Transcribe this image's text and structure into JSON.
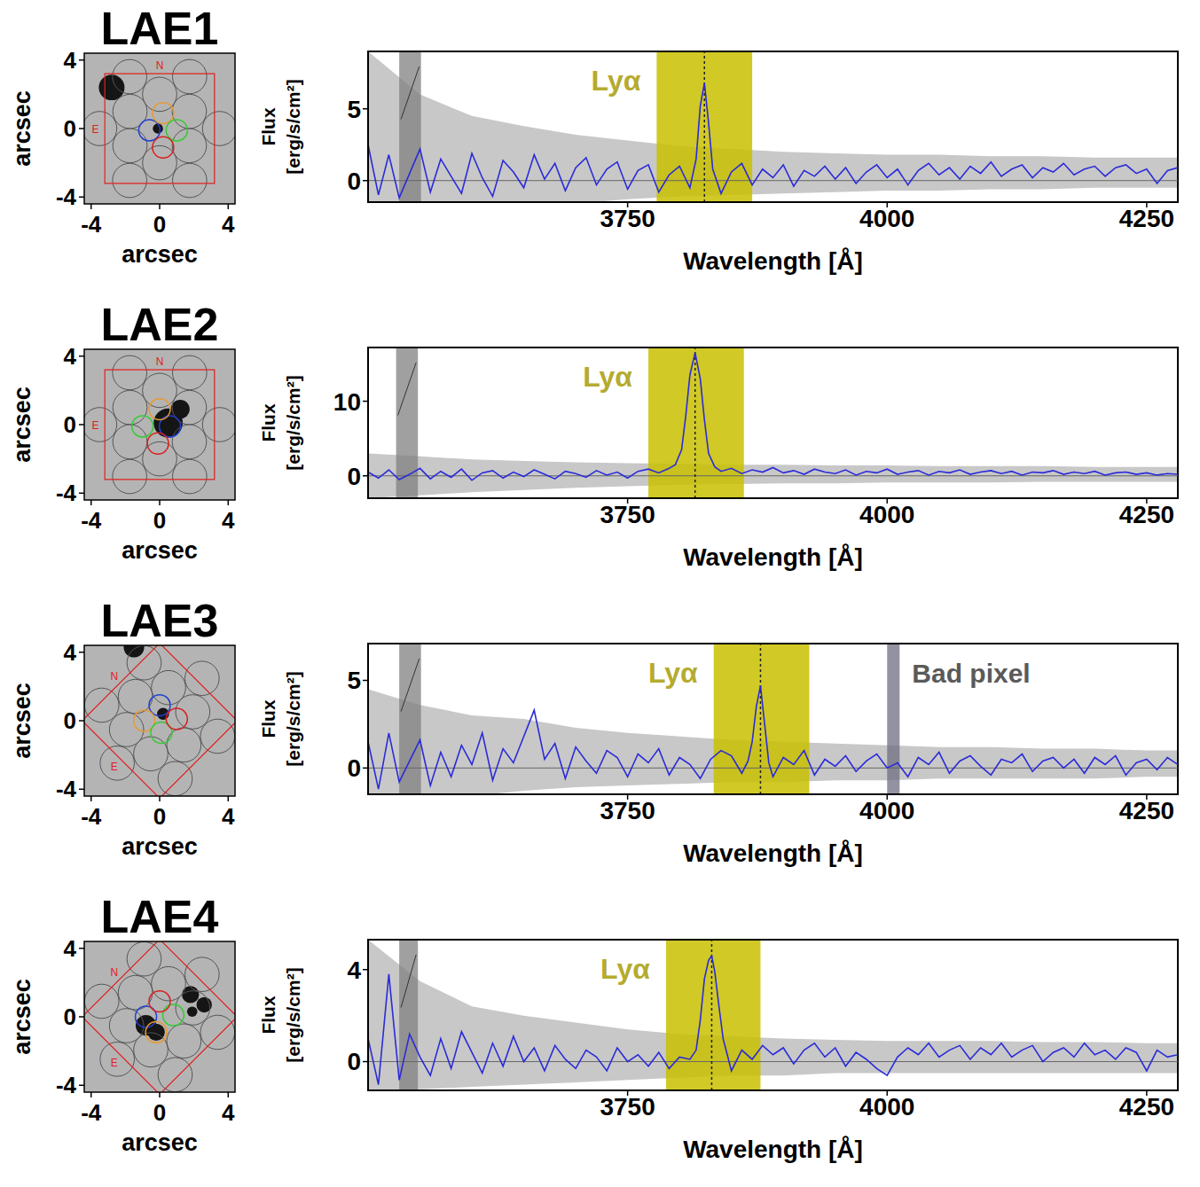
{
  "chart_data": [
    {
      "type": "line",
      "title": "LAE1",
      "x_label": "Wavelength [Å]",
      "y_label": "Flux [erg/s/cm²]",
      "xlim": [
        3500,
        4280
      ],
      "xticks": [
        3750,
        4000,
        4250
      ],
      "ylim": [
        -1.5,
        9
      ],
      "yticks": [
        0,
        5
      ],
      "color": "#2b2bd9",
      "reference_line": 0,
      "x": [
        3500,
        3510,
        3520,
        3530,
        3540,
        3550,
        3560,
        3570,
        3580,
        3590,
        3600,
        3610,
        3620,
        3630,
        3640,
        3650,
        3660,
        3670,
        3680,
        3690,
        3700,
        3710,
        3720,
        3730,
        3740,
        3750,
        3760,
        3770,
        3780,
        3790,
        3800,
        3810,
        3816,
        3820,
        3824,
        3828,
        3832,
        3840,
        3850,
        3860,
        3870,
        3880,
        3890,
        3900,
        3910,
        3920,
        3930,
        3940,
        3950,
        3960,
        3970,
        3980,
        3990,
        4000,
        4010,
        4020,
        4030,
        4040,
        4050,
        4060,
        4070,
        4080,
        4090,
        4100,
        4110,
        4120,
        4130,
        4140,
        4150,
        4160,
        4170,
        4180,
        4190,
        4200,
        4210,
        4220,
        4230,
        4240,
        4250,
        4260,
        4270,
        4280
      ],
      "values": [
        2.5,
        -1.0,
        1.8,
        -1.2,
        0.5,
        2.2,
        -0.8,
        1.5,
        0.3,
        -0.9,
        1.9,
        0.2,
        -1.1,
        1.4,
        0.6,
        -0.5,
        1.8,
        0.1,
        1.2,
        -0.7,
        0.9,
        1.6,
        -0.3,
        0.8,
        1.3,
        -0.6,
        0.7,
        1.1,
        -0.8,
        0.4,
        1.0,
        -0.5,
        1.5,
        5.2,
        6.8,
        4.0,
        0.8,
        -0.9,
        0.6,
        1.2,
        -0.3,
        0.8,
        0.2,
        1.1,
        -0.4,
        0.7,
        0.3,
        1.0,
        0.1,
        0.9,
        -0.2,
        0.6,
        1.1,
        0.2,
        0.8,
        -0.3,
        0.7,
        1.2,
        0.4,
        0.9,
        0.1,
        1.0,
        0.5,
        1.3,
        0.3,
        0.8,
        1.1,
        0.2,
        0.9,
        0.6,
        1.2,
        0.4,
        0.8,
        1.0,
        0.3,
        0.9,
        1.1,
        0.5,
        0.8,
        -0.2,
        0.7,
        0.9
      ],
      "error_band": {
        "color": "#c8c8c8",
        "x": [
          3500,
          3550,
          3600,
          3650,
          3700,
          3750,
          3800,
          3850,
          3900,
          3950,
          4000,
          4050,
          4100,
          4150,
          4200,
          4250,
          4280
        ],
        "lower": [
          -4,
          -3,
          -2.5,
          -2,
          -1.6,
          -1.3,
          -1.1,
          -1.0,
          -0.9,
          -0.8,
          -0.7,
          -0.7,
          -0.6,
          -0.6,
          -0.5,
          -0.5,
          -0.5
        ],
        "upper": [
          9,
          6.0,
          4.5,
          3.8,
          3.2,
          2.8,
          2.4,
          2.2,
          2.0,
          1.9,
          1.8,
          1.8,
          1.7,
          1.7,
          1.6,
          1.6,
          1.6
        ]
      },
      "highlight": {
        "text": "Lyα",
        "x_range": [
          3778,
          3870
        ],
        "line_x": 3824,
        "color": "#c8c000"
      },
      "masked": [
        {
          "x_range": [
            3530,
            3551
          ],
          "color": "#808080"
        }
      ],
      "image_panel": {
        "x_label": "arcsec",
        "y_label": "arcsec",
        "xlim": [
          -4.4,
          4.4
        ],
        "ylim": [
          -4.4,
          4.4
        ],
        "xticks": [
          -4,
          0,
          4
        ],
        "yticks": [
          -4,
          0,
          4
        ],
        "compass": [
          "N",
          "E"
        ]
      }
    },
    {
      "type": "line",
      "title": "LAE2",
      "x_label": "Wavelength [Å]",
      "y_label": "Flux [erg/s/cm²]",
      "xlim": [
        3500,
        4280
      ],
      "xticks": [
        3750,
        4000,
        4250
      ],
      "ylim": [
        -3,
        17.2
      ],
      "yticks": [
        0,
        10
      ],
      "color": "#2b2bd9",
      "reference_line": 0,
      "x": [
        3500,
        3510,
        3520,
        3530,
        3540,
        3550,
        3560,
        3570,
        3580,
        3590,
        3600,
        3610,
        3620,
        3630,
        3640,
        3650,
        3660,
        3670,
        3680,
        3690,
        3700,
        3710,
        3720,
        3730,
        3740,
        3750,
        3760,
        3770,
        3780,
        3790,
        3796,
        3802,
        3806,
        3810,
        3815,
        3820,
        3824,
        3828,
        3834,
        3840,
        3850,
        3860,
        3870,
        3880,
        3890,
        3900,
        3910,
        3920,
        3930,
        3940,
        3950,
        3960,
        3970,
        3980,
        3990,
        4000,
        4010,
        4020,
        4030,
        4040,
        4050,
        4060,
        4070,
        4080,
        4090,
        4100,
        4110,
        4120,
        4130,
        4140,
        4150,
        4160,
        4170,
        4180,
        4190,
        4200,
        4210,
        4220,
        4230,
        4240,
        4250,
        4260,
        4270,
        4280
      ],
      "values": [
        0.5,
        -0.3,
        0.8,
        -0.5,
        0.2,
        1.0,
        -0.4,
        0.6,
        -0.2,
        0.9,
        -0.6,
        0.4,
        0.7,
        -0.3,
        0.5,
        -0.1,
        0.8,
        0.2,
        -0.4,
        0.6,
        0.3,
        -0.2,
        0.7,
        0.1,
        0.5,
        -0.3,
        0.6,
        0.9,
        0.4,
        1.0,
        1.5,
        3.5,
        8.0,
        13.5,
        16.5,
        13.0,
        7.5,
        3.0,
        1.2,
        0.6,
        1.0,
        0.3,
        0.8,
        0.5,
        1.1,
        0.4,
        0.7,
        0.2,
        0.9,
        0.5,
        0.3,
        0.8,
        0.1,
        0.6,
        0.4,
        0.9,
        0.2,
        0.5,
        0.7,
        0.1,
        0.6,
        0.4,
        0.8,
        0.2,
        0.5,
        0.7,
        0.3,
        0.6,
        0.1,
        0.5,
        0.4,
        0.7,
        0.2,
        0.5,
        0.3,
        0.6,
        0.1,
        0.4,
        0.5,
        0.2,
        0.4,
        0.1,
        0.3,
        0.2
      ],
      "error_band": {
        "color": "#c8c8c8",
        "x": [
          3500,
          3550,
          3600,
          3650,
          3700,
          3750,
          3800,
          3850,
          3900,
          3950,
          4000,
          4050,
          4100,
          4150,
          4200,
          4250,
          4280
        ],
        "lower": [
          -3,
          -2.6,
          -2.2,
          -1.9,
          -1.6,
          -1.4,
          -1.2,
          -1.1,
          -1.0,
          -1.0,
          -0.9,
          -0.9,
          -0.9,
          -0.8,
          -0.8,
          -0.8,
          -0.8
        ],
        "upper": [
          3.0,
          2.6,
          2.2,
          2.0,
          1.8,
          1.7,
          1.6,
          1.5,
          1.5,
          1.4,
          1.4,
          1.3,
          1.3,
          1.3,
          1.2,
          1.2,
          1.2
        ]
      },
      "highlight": {
        "text": "Lyα",
        "x_range": [
          3770,
          3862
        ],
        "line_x": 3815,
        "color": "#c8c000"
      },
      "masked": [
        {
          "x_range": [
            3527,
            3548
          ],
          "color": "#808080"
        }
      ],
      "image_panel": {
        "x_label": "arcsec",
        "y_label": "arcsec",
        "xlim": [
          -4.4,
          4.4
        ],
        "ylim": [
          -4.4,
          4.4
        ],
        "xticks": [
          -4,
          0,
          4
        ],
        "yticks": [
          -4,
          0,
          4
        ],
        "compass": [
          "N",
          "E"
        ]
      }
    },
    {
      "type": "line",
      "title": "LAE3",
      "x_label": "Wavelength [Å]",
      "y_label": "Flux [erg/s/cm²]",
      "xlim": [
        3500,
        4280
      ],
      "xticks": [
        3750,
        4000,
        4250
      ],
      "ylim": [
        -1.5,
        7.1
      ],
      "yticks": [
        0,
        5
      ],
      "color": "#2b2bd9",
      "reference_line": 0,
      "x": [
        3500,
        3510,
        3520,
        3530,
        3540,
        3550,
        3560,
        3570,
        3580,
        3590,
        3600,
        3610,
        3620,
        3630,
        3640,
        3650,
        3660,
        3670,
        3680,
        3690,
        3700,
        3710,
        3720,
        3730,
        3740,
        3750,
        3760,
        3770,
        3780,
        3790,
        3800,
        3810,
        3820,
        3830,
        3840,
        3850,
        3860,
        3866,
        3870,
        3874,
        3878,
        3882,
        3886,
        3890,
        3900,
        3910,
        3920,
        3930,
        3940,
        3950,
        3960,
        3970,
        3980,
        3990,
        4000,
        4010,
        4020,
        4030,
        4040,
        4050,
        4060,
        4070,
        4080,
        4090,
        4100,
        4110,
        4120,
        4130,
        4140,
        4150,
        4160,
        4170,
        4180,
        4190,
        4200,
        4210,
        4220,
        4230,
        4240,
        4250,
        4260,
        4270,
        4280
      ],
      "values": [
        1.5,
        -1.2,
        2.0,
        -0.8,
        0.4,
        1.6,
        -1.0,
        0.9,
        -0.5,
        1.3,
        0.2,
        2.0,
        -0.7,
        1.1,
        0.3,
        1.8,
        3.3,
        0.5,
        1.4,
        -0.6,
        1.2,
        0.4,
        -0.3,
        1.0,
        0.6,
        -0.5,
        0.8,
        0.3,
        1.1,
        -0.4,
        0.6,
        0.2,
        -0.6,
        0.5,
        1.0,
        0.7,
        -0.3,
        0.4,
        1.5,
        3.5,
        4.7,
        2.5,
        0.3,
        -0.5,
        0.6,
        0.2,
        1.0,
        -0.4,
        0.5,
        0.1,
        0.7,
        -0.2,
        0.4,
        0.8,
        0.0,
        0.3,
        -0.5,
        0.6,
        0.2,
        0.9,
        -0.3,
        0.4,
        0.7,
        0.1,
        -0.4,
        0.5,
        0.3,
        0.8,
        -0.2,
        0.4,
        0.6,
        0.0,
        0.5,
        -0.3,
        0.6,
        0.2,
        0.7,
        -0.4,
        0.3,
        0.5,
        -0.1,
        0.6,
        0.2
      ],
      "error_band": {
        "color": "#c8c8c8",
        "x": [
          3500,
          3550,
          3600,
          3650,
          3700,
          3750,
          3800,
          3850,
          3900,
          3950,
          4000,
          4050,
          4100,
          4150,
          4200,
          4250,
          4280
        ],
        "lower": [
          -2.5,
          -2,
          -1.6,
          -1.3,
          -1.1,
          -1.0,
          -0.9,
          -0.8,
          -0.8,
          -0.7,
          -0.7,
          -0.6,
          -0.6,
          -0.6,
          -0.6,
          -0.5,
          -0.5
        ],
        "upper": [
          4.5,
          3.6,
          3.0,
          2.8,
          2.3,
          2.0,
          1.8,
          1.6,
          1.5,
          1.4,
          1.3,
          1.2,
          1.2,
          1.1,
          1.1,
          1.0,
          1.0
        ]
      },
      "highlight": {
        "text": "Lyα",
        "x_range": [
          3833,
          3925
        ],
        "line_x": 3878,
        "color": "#c8c000"
      },
      "masked": [
        {
          "x_range": [
            3530,
            3551
          ],
          "color": "#808080"
        },
        {
          "x_range": [
            4000,
            4012
          ],
          "color": "#6e6e80",
          "text": "Bad pixel"
        }
      ],
      "image_panel": {
        "x_label": "arcsec",
        "y_label": "arcsec",
        "xlim": [
          -4.4,
          4.4
        ],
        "ylim": [
          -4.4,
          4.4
        ],
        "xticks": [
          -4,
          0,
          4
        ],
        "yticks": [
          -4,
          0,
          4
        ],
        "compass": [
          "N",
          "E"
        ]
      }
    },
    {
      "type": "line",
      "title": "LAE4",
      "x_label": "Wavelength [Å]",
      "y_label": "Flux [erg/s/cm²]",
      "xlim": [
        3500,
        4280
      ],
      "xticks": [
        3750,
        4000,
        4250
      ],
      "ylim": [
        -1.25,
        5.3
      ],
      "yticks": [
        0,
        4
      ],
      "color": "#2b2bd9",
      "reference_line": 0,
      "x": [
        3500,
        3510,
        3520,
        3530,
        3540,
        3550,
        3560,
        3570,
        3580,
        3590,
        3600,
        3610,
        3620,
        3630,
        3640,
        3650,
        3660,
        3670,
        3680,
        3690,
        3700,
        3710,
        3720,
        3730,
        3740,
        3750,
        3760,
        3770,
        3780,
        3790,
        3800,
        3810,
        3816,
        3820,
        3824,
        3828,
        3831,
        3834,
        3838,
        3842,
        3846,
        3850,
        3860,
        3870,
        3880,
        3890,
        3900,
        3910,
        3920,
        3930,
        3940,
        3950,
        3960,
        3970,
        3980,
        3990,
        4000,
        4010,
        4020,
        4030,
        4040,
        4050,
        4060,
        4070,
        4080,
        4090,
        4100,
        4110,
        4120,
        4130,
        4140,
        4150,
        4160,
        4170,
        4180,
        4190,
        4200,
        4210,
        4220,
        4230,
        4240,
        4250,
        4260,
        4270,
        4280
      ],
      "values": [
        1.0,
        -1.0,
        3.8,
        -0.8,
        1.2,
        0.2,
        -0.6,
        1.0,
        -0.3,
        1.3,
        0.4,
        -0.5,
        0.8,
        -0.2,
        1.1,
        0.0,
        0.6,
        -0.4,
        0.7,
        0.1,
        -0.3,
        0.5,
        0.2,
        -0.4,
        0.6,
        0.0,
        0.3,
        -0.2,
        0.4,
        -0.3,
        0.2,
        0.1,
        0.5,
        1.8,
        3.6,
        4.4,
        4.6,
        3.9,
        2.4,
        1.0,
        0.3,
        -0.4,
        0.5,
        0.1,
        0.7,
        0.3,
        0.6,
        -0.1,
        0.5,
        0.8,
        0.2,
        0.6,
        -0.2,
        0.4,
        0.1,
        -0.3,
        -0.6,
        0.2,
        0.6,
        0.3,
        0.8,
        0.2,
        0.5,
        0.7,
        0.1,
        0.6,
        0.3,
        0.8,
        0.2,
        0.5,
        0.7,
        0.0,
        0.4,
        0.6,
        0.2,
        0.8,
        0.3,
        0.5,
        0.1,
        0.6,
        0.4,
        -0.4,
        0.5,
        0.2,
        0.3
      ],
      "error_band": {
        "color": "#c8c8c8",
        "x": [
          3500,
          3550,
          3600,
          3650,
          3700,
          3750,
          3800,
          3850,
          3900,
          3950,
          4000,
          4050,
          4100,
          4150,
          4200,
          4250,
          4280
        ],
        "lower": [
          -1.25,
          -1.2,
          -1.1,
          -1.0,
          -0.9,
          -0.8,
          -0.7,
          -0.6,
          -0.6,
          -0.5,
          -0.5,
          -0.5,
          -0.5,
          -0.5,
          -0.5,
          -0.5,
          -0.5
        ],
        "upper": [
          5.3,
          3.5,
          2.4,
          2.0,
          1.7,
          1.4,
          1.2,
          1.1,
          1.0,
          0.95,
          0.9,
          0.9,
          0.9,
          0.85,
          0.85,
          0.8,
          0.8
        ]
      },
      "highlight": {
        "text": "Lyα",
        "x_range": [
          3787,
          3878
        ],
        "line_x": 3831,
        "color": "#c8c000"
      },
      "masked": [
        {
          "x_range": [
            3530,
            3548
          ],
          "color": "#808080"
        }
      ],
      "image_panel": {
        "x_label": "arcsec",
        "y_label": "arcsec",
        "xlim": [
          -4.4,
          4.4
        ],
        "ylim": [
          -4.4,
          4.4
        ],
        "xticks": [
          -4,
          0,
          4
        ],
        "yticks": [
          -4,
          0,
          4
        ],
        "compass": [
          "N",
          "E"
        ]
      }
    }
  ]
}
